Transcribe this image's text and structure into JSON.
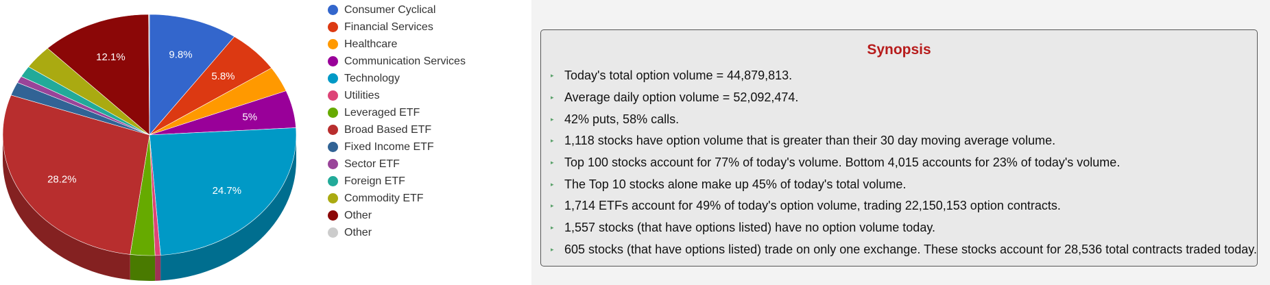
{
  "chart_data": {
    "type": "pie",
    "slices": [
      {
        "label": "Consumer Cyclical",
        "value": 9.8,
        "color": "#3366cc",
        "data_label": "9.8%"
      },
      {
        "label": "Financial Services",
        "value": 5.8,
        "color": "#dc3912",
        "data_label": "5.8%"
      },
      {
        "label": "Healthcare",
        "value": 3.4,
        "color": "#ff9900",
        "data_label": ""
      },
      {
        "label": "Communication Services",
        "value": 5,
        "color": "#990099",
        "data_label": "5%"
      },
      {
        "label": "Technology",
        "value": 24.7,
        "color": "#0099c6",
        "data_label": "24.7%"
      },
      {
        "label": "Utilities",
        "value": 0.6,
        "color": "#dd4477",
        "data_label": ""
      },
      {
        "label": "Leveraged ETF",
        "value": 2.7,
        "color": "#66aa00",
        "data_label": ""
      },
      {
        "label": "Broad Based ETF",
        "value": 28.2,
        "color": "#b82e2e",
        "data_label": "28.2%"
      },
      {
        "label": "Fixed Income ETF",
        "value": 1.8,
        "color": "#316395",
        "data_label": ""
      },
      {
        "label": "Sector ETF",
        "value": 0.9,
        "color": "#994499",
        "data_label": ""
      },
      {
        "label": "Foreign ETF",
        "value": 1.5,
        "color": "#22aa99",
        "data_label": ""
      },
      {
        "label": "Commodity ETF",
        "value": 3.2,
        "color": "#aaaa11",
        "data_label": ""
      },
      {
        "label": "Other",
        "value": 12.1,
        "color": "#8b0707",
        "data_label": "12.1%"
      },
      {
        "label": "Other",
        "value": 0.1,
        "color": "#cccccc",
        "data_label": ""
      }
    ],
    "legend_position": "right",
    "style": "3d"
  },
  "legend": [
    {
      "label": "Consumer Cyclical",
      "color": "#3366cc"
    },
    {
      "label": "Financial Services",
      "color": "#dc3912"
    },
    {
      "label": "Healthcare",
      "color": "#ff9900"
    },
    {
      "label": "Communication Services",
      "color": "#990099"
    },
    {
      "label": "Technology",
      "color": "#0099c6"
    },
    {
      "label": "Utilities",
      "color": "#dd4477"
    },
    {
      "label": "Leveraged ETF",
      "color": "#66aa00"
    },
    {
      "label": "Broad Based ETF",
      "color": "#b82e2e"
    },
    {
      "label": "Fixed Income ETF",
      "color": "#316395"
    },
    {
      "label": "Sector ETF",
      "color": "#994499"
    },
    {
      "label": "Foreign ETF",
      "color": "#22aa99"
    },
    {
      "label": "Commodity ETF",
      "color": "#aaaa11"
    },
    {
      "label": "Other",
      "color": "#8b0707"
    },
    {
      "label": "Other",
      "color": "#cccccc"
    }
  ],
  "synopsis": {
    "title": "Synopsis",
    "items": [
      "Today's total option volume = 44,879,813.",
      "Average daily option volume = 52,092,474.",
      "42% puts, 58% calls.",
      "1,118 stocks have option volume that is greater than their 30 day moving average volume.",
      "Top 100 stocks account for 77% of today's volume. Bottom 4,015 accounts for 23% of today's volume.",
      "The Top 10 stocks alone make up 45% of today's total volume.",
      "1,714 ETFs account for 49% of today's option volume, trading 22,150,153 option contracts.",
      "1,557 stocks (that have options listed) have no option volume today.",
      "605 stocks (that have options listed) trade on only one exchange. These stocks account for 28,536 total contracts traded today."
    ]
  }
}
